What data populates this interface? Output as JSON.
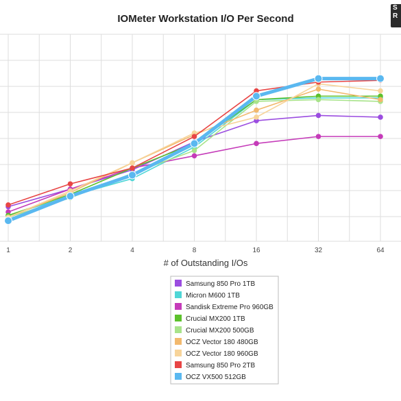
{
  "chart_data": {
    "type": "line",
    "title": "IOMeter Workstation I/O Per Second",
    "xlabel": "# of Outstanding I/Os",
    "ylabel": "",
    "x": [
      1,
      2,
      4,
      8,
      16,
      32,
      64
    ],
    "x_tick_labels": [
      "1",
      "2",
      "4",
      "8",
      "16",
      "32",
      "64"
    ],
    "x_scale": "log2",
    "y_ticks_visible": false,
    "grid": true,
    "legend_position": "bottom",
    "series": [
      {
        "name": "Samsung 850 Pro 1TB",
        "color": "#9B4DE0",
        "values": [
          0.92,
          0.82,
          0.71,
          0.55,
          0.43,
          0.4,
          0.41
        ]
      },
      {
        "name": "Micron M600 1TB",
        "color": "#4FD6D6",
        "values": [
          0.97,
          0.86,
          0.76,
          0.58,
          0.31,
          0.3,
          0.3
        ]
      },
      {
        "name": "Sandisk Extreme Pro 960GB",
        "color": "#C53BB9",
        "values": [
          0.95,
          0.82,
          0.7,
          0.63,
          0.56,
          0.52,
          0.52
        ]
      },
      {
        "name": "Crucial MX200 1TB",
        "color": "#5CC12C",
        "values": [
          0.97,
          0.85,
          0.7,
          0.56,
          0.31,
          0.29,
          0.29
        ]
      },
      {
        "name": "Crucial MX200 500GB",
        "color": "#A8E38A",
        "values": [
          0.98,
          0.87,
          0.73,
          0.6,
          0.32,
          0.31,
          0.32
        ]
      },
      {
        "name": "OCZ Vector 180 480GB",
        "color": "#F2B96E",
        "values": [
          0.98,
          0.84,
          0.67,
          0.51,
          0.37,
          0.25,
          0.31
        ]
      },
      {
        "name": "OCZ Vector 180 960GB",
        "color": "#F7D49A",
        "values": [
          0.98,
          0.83,
          0.67,
          0.5,
          0.41,
          0.22,
          0.26
        ]
      },
      {
        "name": "Samsung 850 Pro 2TB",
        "color": "#E84545",
        "values": [
          0.91,
          0.79,
          0.7,
          0.52,
          0.26,
          0.21,
          0.2
        ]
      },
      {
        "name": "OCZ VX500 512GB",
        "color": "#5AB8F0",
        "values": [
          1.0,
          0.86,
          0.74,
          0.56,
          0.29,
          0.19,
          0.19
        ]
      }
    ]
  }
}
